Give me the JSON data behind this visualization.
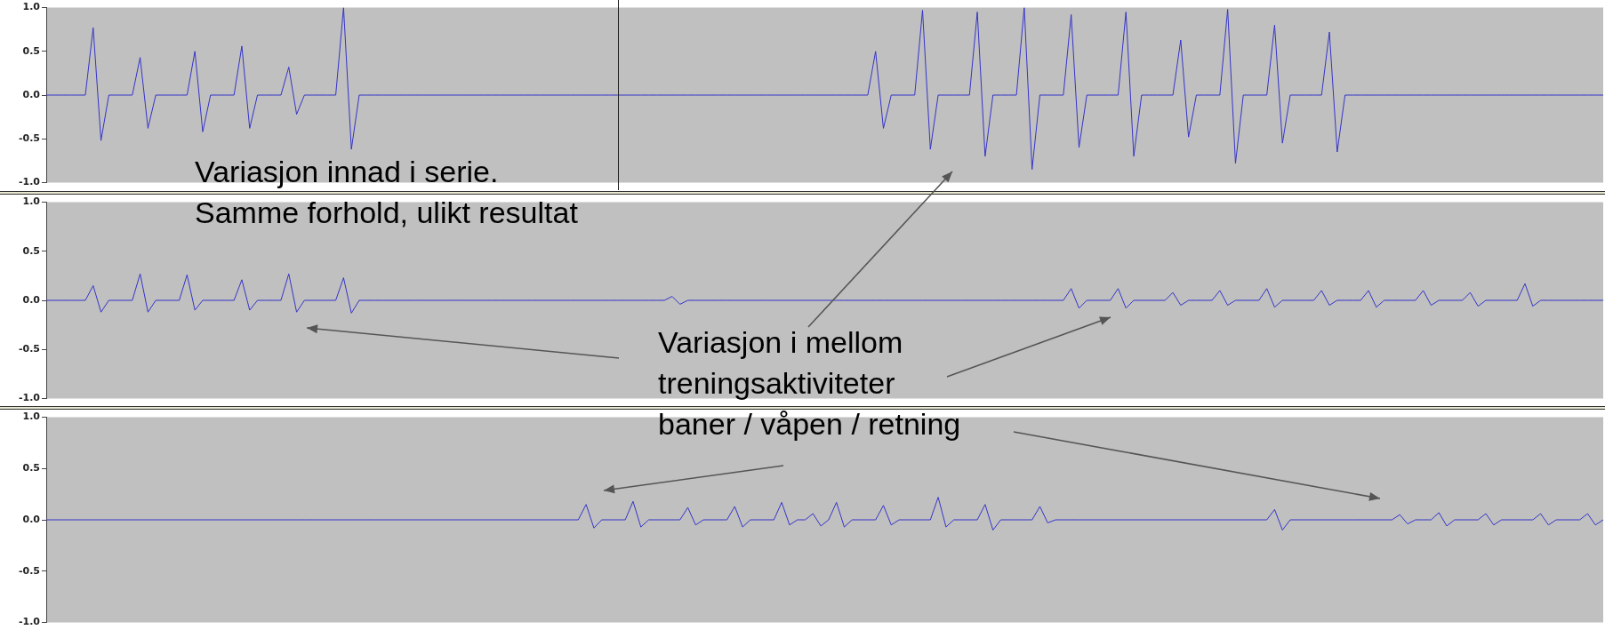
{
  "chart_data": [
    {
      "type": "line",
      "tick_labels": "y",
      "grid": false,
      "color": "#3434c8",
      "ylim": [
        -1,
        1
      ],
      "yticks": [
        {
          "value": 1,
          "label": "1.0"
        },
        {
          "value": 0.5,
          "label": "0.5"
        },
        {
          "value": 0,
          "label": "0.0"
        },
        {
          "value": -0.5,
          "label": "-0.5"
        },
        {
          "value": -1,
          "label": "-1.0"
        }
      ],
      "annotations": [
        "Variasjon innad i serie.\nSamme forhold, ulikt resultat"
      ],
      "categories": [
        null,
        null,
        null,
        null,
        null,
        null,
        null,
        null,
        null,
        null,
        null,
        null,
        null,
        null,
        null,
        null,
        null,
        null,
        null,
        null,
        null,
        null,
        null,
        null,
        null,
        null,
        null,
        null,
        null,
        null,
        null,
        null,
        null,
        null,
        null,
        null,
        null,
        null,
        null,
        null,
        null,
        null,
        null,
        null,
        null,
        null,
        null,
        null,
        null,
        null,
        null,
        null,
        null,
        null,
        null,
        null,
        null,
        null,
        null,
        null,
        null,
        null,
        null,
        null,
        null,
        null,
        null,
        null,
        null,
        null,
        null,
        null,
        null,
        null,
        null,
        null,
        null,
        null,
        null,
        null,
        null,
        null,
        null,
        null,
        null,
        null,
        null,
        null,
        null,
        null,
        null,
        null,
        null,
        null,
        null,
        null,
        null,
        null,
        null,
        null,
        null,
        null,
        null,
        null,
        null,
        null,
        null,
        null,
        null,
        null,
        null,
        null,
        null,
        null,
        null,
        null,
        null,
        null,
        null,
        null,
        null,
        null,
        null,
        null,
        null,
        null,
        null,
        null,
        null,
        null,
        null,
        null,
        null,
        null,
        null,
        null,
        null,
        null,
        null,
        null,
        null,
        null,
        null,
        null,
        null,
        null,
        null,
        null,
        null,
        null,
        null,
        null,
        null,
        null,
        null,
        null,
        null,
        null,
        null,
        null,
        null,
        null,
        null,
        null,
        null,
        null,
        null,
        null,
        null,
        null,
        null,
        null,
        null,
        null,
        null,
        null,
        null,
        null,
        null,
        null,
        null,
        null,
        null,
        null,
        null,
        null,
        null,
        null,
        null,
        null,
        null,
        null,
        null,
        null,
        null,
        null,
        null,
        null,
        null,
        null
      ],
      "values": [
        0,
        0,
        0,
        0,
        0,
        0,
        0.77,
        -0.52,
        0,
        0,
        0,
        0,
        0.43,
        -0.38,
        0,
        0,
        0,
        0,
        0,
        0.5,
        -0.42,
        0,
        0,
        0,
        0,
        0.56,
        -0.38,
        0,
        0,
        0,
        0,
        0.32,
        -0.22,
        0,
        0,
        0,
        0,
        0,
        1.0,
        -0.62,
        0,
        0,
        0,
        0,
        0,
        0,
        0,
        0,
        0,
        0,
        0,
        0,
        0,
        0,
        0,
        0,
        0,
        0,
        0,
        0,
        0,
        0,
        0,
        0,
        0,
        0,
        0,
        0,
        0,
        0,
        0,
        0,
        0,
        0,
        0,
        0,
        0,
        0,
        0,
        0,
        0,
        0,
        0,
        0,
        0,
        0,
        0,
        0,
        0,
        0,
        0,
        0,
        0,
        0,
        0,
        0,
        0,
        0,
        0,
        0,
        0,
        0,
        0,
        0,
        0,
        0,
        0.5,
        -0.38,
        0,
        0,
        0,
        0,
        0.97,
        -0.62,
        0,
        0,
        0,
        0,
        0,
        0.95,
        -0.7,
        0,
        0,
        0,
        0,
        1.0,
        -0.85,
        0,
        0,
        0,
        0,
        0.92,
        -0.6,
        0,
        0,
        0,
        0,
        0,
        0.95,
        -0.7,
        0,
        0,
        0,
        0,
        0,
        0.63,
        -0.48,
        0,
        0,
        0,
        0,
        0.98,
        -0.78,
        0,
        0,
        0,
        0,
        0.8,
        -0.55,
        0,
        0,
        0,
        0,
        0,
        0.72,
        -0.65,
        0,
        0,
        0,
        0,
        0,
        0,
        0,
        0,
        0,
        0,
        0,
        0,
        0,
        0,
        0,
        0,
        0,
        0,
        0,
        0,
        0,
        0,
        0,
        0,
        0,
        0,
        0,
        0,
        0,
        0,
        0,
        0,
        0,
        0
      ]
    },
    {
      "type": "line",
      "tick_labels": "y",
      "grid": false,
      "color": "#3434c8",
      "ylim": [
        -1,
        1
      ],
      "yticks": [
        {
          "value": 1,
          "label": "1.0"
        },
        {
          "value": 0.5,
          "label": "0.5"
        },
        {
          "value": 0,
          "label": "0.0"
        },
        {
          "value": -0.5,
          "label": "-0.5"
        },
        {
          "value": -1,
          "label": "-1.0"
        }
      ],
      "annotations": [
        "Variasjon i mellom\ntreningsaktiviteter\nbaner / våpen / retning"
      ],
      "categories": [
        null,
        null,
        null,
        null,
        null,
        null,
        null,
        null,
        null,
        null,
        null,
        null,
        null,
        null,
        null,
        null,
        null,
        null,
        null,
        null,
        null,
        null,
        null,
        null,
        null,
        null,
        null,
        null,
        null,
        null,
        null,
        null,
        null,
        null,
        null,
        null,
        null,
        null,
        null,
        null,
        null,
        null,
        null,
        null,
        null,
        null,
        null,
        null,
        null,
        null,
        null,
        null,
        null,
        null,
        null,
        null,
        null,
        null,
        null,
        null,
        null,
        null,
        null,
        null,
        null,
        null,
        null,
        null,
        null,
        null,
        null,
        null,
        null,
        null,
        null,
        null,
        null,
        null,
        null,
        null,
        null,
        null,
        null,
        null,
        null,
        null,
        null,
        null,
        null,
        null,
        null,
        null,
        null,
        null,
        null,
        null,
        null,
        null,
        null,
        null,
        null,
        null,
        null,
        null,
        null,
        null,
        null,
        null,
        null,
        null,
        null,
        null,
        null,
        null,
        null,
        null,
        null,
        null,
        null,
        null,
        null,
        null,
        null,
        null,
        null,
        null,
        null,
        null,
        null,
        null,
        null,
        null,
        null,
        null,
        null,
        null,
        null,
        null,
        null,
        null,
        null,
        null,
        null,
        null,
        null,
        null,
        null,
        null,
        null,
        null,
        null,
        null,
        null,
        null,
        null,
        null,
        null,
        null,
        null,
        null,
        null,
        null,
        null,
        null,
        null,
        null,
        null,
        null,
        null,
        null,
        null,
        null,
        null,
        null,
        null,
        null,
        null,
        null,
        null,
        null,
        null,
        null,
        null,
        null,
        null,
        null,
        null,
        null,
        null,
        null,
        null,
        null,
        null,
        null,
        null,
        null,
        null,
        null,
        null,
        null
      ],
      "values": [
        0,
        0,
        0,
        0,
        0,
        0,
        0.15,
        -0.12,
        0,
        0,
        0,
        0,
        0.27,
        -0.12,
        0,
        0,
        0,
        0,
        0.26,
        -0.1,
        0,
        0,
        0,
        0,
        0,
        0.21,
        -0.1,
        0,
        0,
        0,
        0,
        0.27,
        -0.12,
        0,
        0,
        0,
        0,
        0,
        0.23,
        -0.13,
        0,
        0,
        0,
        0,
        0,
        0,
        0,
        0,
        0,
        0,
        0,
        0,
        0,
        0,
        0,
        0,
        0,
        0,
        0,
        0,
        0,
        0,
        0,
        0,
        0,
        0,
        0,
        0,
        0,
        0,
        0,
        0,
        0,
        0,
        0,
        0,
        0,
        0,
        0,
        0,
        0.04,
        -0.04,
        0,
        0,
        0,
        0,
        0,
        0,
        0,
        0,
        0,
        0,
        0,
        0,
        0,
        0,
        0,
        0,
        0,
        0,
        0,
        0,
        0,
        0,
        0,
        0,
        0,
        0,
        0,
        0,
        0,
        0,
        0,
        0,
        0,
        0,
        0,
        0,
        0,
        0,
        0,
        0,
        0,
        0,
        0,
        0,
        0,
        0,
        0,
        0,
        0,
        0.12,
        -0.08,
        0,
        0,
        0,
        0,
        0.12,
        -0.08,
        0,
        0,
        0,
        0,
        0,
        0.08,
        -0.05,
        0,
        0,
        0,
        0,
        0.1,
        -0.05,
        0,
        0,
        0,
        0,
        0.12,
        -0.07,
        0,
        0,
        0,
        0,
        0,
        0.1,
        -0.05,
        0,
        0,
        0,
        0,
        0.1,
        -0.07,
        0,
        0,
        0,
        0,
        0,
        0.1,
        -0.05,
        0,
        0,
        0,
        0,
        0.08,
        -0.06,
        0,
        0,
        0,
        0,
        0,
        0.17,
        -0.06,
        0,
        0,
        0,
        0,
        0,
        0,
        0,
        0,
        0
      ]
    },
    {
      "type": "line",
      "tick_labels": "y",
      "grid": false,
      "color": "#3434c8",
      "ylim": [
        -1,
        1
      ],
      "yticks": [
        {
          "value": 1,
          "label": "1.0"
        },
        {
          "value": 0.5,
          "label": "0.5"
        },
        {
          "value": 0,
          "label": "0.0"
        },
        {
          "value": -0.5,
          "label": "-0.5"
        },
        {
          "value": -1,
          "label": "-1.0"
        }
      ],
      "categories": [
        null,
        null,
        null,
        null,
        null,
        null,
        null,
        null,
        null,
        null,
        null,
        null,
        null,
        null,
        null,
        null,
        null,
        null,
        null,
        null,
        null,
        null,
        null,
        null,
        null,
        null,
        null,
        null,
        null,
        null,
        null,
        null,
        null,
        null,
        null,
        null,
        null,
        null,
        null,
        null,
        null,
        null,
        null,
        null,
        null,
        null,
        null,
        null,
        null,
        null,
        null,
        null,
        null,
        null,
        null,
        null,
        null,
        null,
        null,
        null,
        null,
        null,
        null,
        null,
        null,
        null,
        null,
        null,
        null,
        null,
        null,
        null,
        null,
        null,
        null,
        null,
        null,
        null,
        null,
        null,
        null,
        null,
        null,
        null,
        null,
        null,
        null,
        null,
        null,
        null,
        null,
        null,
        null,
        null,
        null,
        null,
        null,
        null,
        null,
        null,
        null,
        null,
        null,
        null,
        null,
        null,
        null,
        null,
        null,
        null,
        null,
        null,
        null,
        null,
        null,
        null,
        null,
        null,
        null,
        null,
        null,
        null,
        null,
        null,
        null,
        null,
        null,
        null,
        null,
        null,
        null,
        null,
        null,
        null,
        null,
        null,
        null,
        null,
        null,
        null,
        null,
        null,
        null,
        null,
        null,
        null,
        null,
        null,
        null,
        null,
        null,
        null,
        null,
        null,
        null,
        null,
        null,
        null,
        null,
        null,
        null,
        null,
        null,
        null,
        null,
        null,
        null,
        null,
        null,
        null,
        null,
        null,
        null,
        null,
        null,
        null,
        null,
        null,
        null,
        null,
        null,
        null,
        null,
        null,
        null,
        null,
        null,
        null,
        null,
        null,
        null,
        null,
        null,
        null,
        null,
        null,
        null,
        null,
        null,
        null
      ],
      "values": [
        0,
        0,
        0,
        0,
        0,
        0,
        0,
        0,
        0,
        0,
        0,
        0,
        0,
        0,
        0,
        0,
        0,
        0,
        0,
        0,
        0,
        0,
        0,
        0,
        0,
        0,
        0,
        0,
        0,
        0,
        0,
        0,
        0,
        0,
        0,
        0,
        0,
        0,
        0,
        0,
        0,
        0,
        0,
        0,
        0,
        0,
        0,
        0,
        0,
        0,
        0,
        0,
        0,
        0,
        0,
        0,
        0,
        0,
        0,
        0,
        0,
        0,
        0,
        0,
        0,
        0,
        0,
        0,
        0,
        0.15,
        -0.08,
        0,
        0,
        0,
        0,
        0.18,
        -0.07,
        0,
        0,
        0,
        0,
        0,
        0.12,
        -0.05,
        0,
        0,
        0,
        0,
        0.13,
        -0.07,
        0,
        0,
        0,
        0,
        0.17,
        -0.05,
        0,
        0,
        0.06,
        -0.06,
        0,
        0.17,
        -0.07,
        0,
        0,
        0,
        0,
        0.14,
        -0.05,
        0,
        0,
        0,
        0,
        0,
        0.22,
        -0.07,
        0,
        0,
        0,
        0,
        0.15,
        -0.1,
        0,
        0,
        0,
        0,
        0,
        0.13,
        -0.03,
        0,
        0,
        0,
        0,
        0,
        0,
        0,
        0,
        0,
        0,
        0,
        0,
        0,
        0,
        0,
        0,
        0,
        0,
        0,
        0,
        0,
        0,
        0,
        0,
        0,
        0,
        0,
        0,
        0.1,
        -0.1,
        0,
        0,
        0,
        0,
        0,
        0,
        0,
        0,
        0,
        0,
        0,
        0,
        0,
        0,
        0.05,
        -0.04,
        0,
        0,
        0,
        0.07,
        -0.06,
        0,
        0,
        0,
        0,
        0.06,
        -0.05,
        0,
        0,
        0,
        0,
        0,
        0.06,
        -0.05,
        0,
        0,
        0,
        0,
        0.06,
        -0.05,
        0
      ]
    }
  ]
}
